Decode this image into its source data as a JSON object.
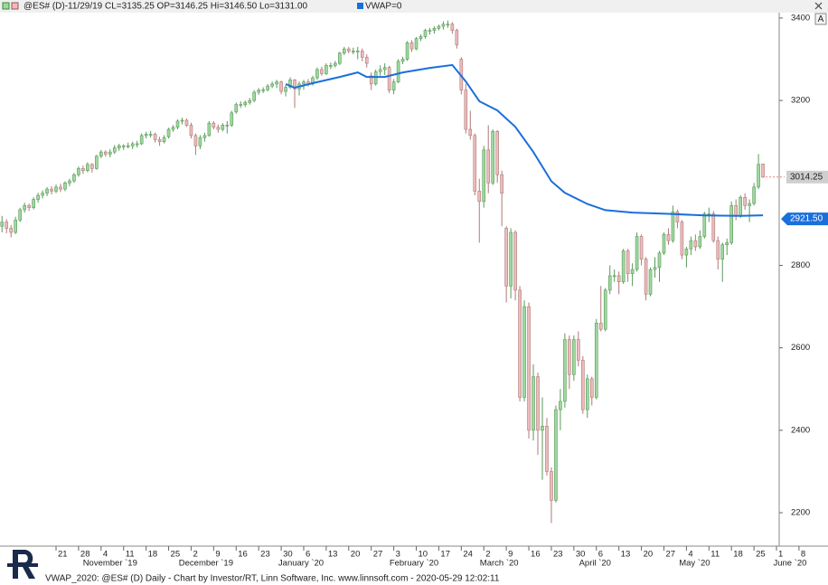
{
  "chart_data": {
    "type": "candlestick",
    "title": "@ES# (D)-11/29/19 CL=3135.25 OP=3146.25 Hi=3146.50 Lo=3131.00",
    "legend_vwap": "VWAP=0",
    "footer": "VWAP_2020: @ES# (D) Daily - Chart by Investor/RT, Linn Software, Inc. www.linnsoft.com - 2020-05-29 12:02:11",
    "button": "A",
    "up_color": "#9fd89f",
    "down_color": "#ecbcbc",
    "xlim": [
      -0.45,
      172.6
    ],
    "ylim": [
      2119,
      3413
    ],
    "yticks": [
      2200,
      2400,
      2600,
      2800,
      3200,
      3400
    ],
    "xticks": [
      {
        "value": 12,
        "label": "21"
      },
      {
        "value": 17,
        "label": "28"
      },
      {
        "value": 22,
        "label": "4"
      },
      {
        "value": 27,
        "label": "11"
      },
      {
        "value": 32,
        "label": "18"
      },
      {
        "value": 37,
        "label": "25"
      },
      {
        "value": 42,
        "label": "2"
      },
      {
        "value": 47,
        "label": "9"
      },
      {
        "value": 52,
        "label": "16"
      },
      {
        "value": 57,
        "label": "23"
      },
      {
        "value": 62,
        "label": "30"
      },
      {
        "value": 67,
        "label": "6"
      },
      {
        "value": 72,
        "label": "13"
      },
      {
        "value": 77,
        "label": "20"
      },
      {
        "value": 82,
        "label": "27"
      },
      {
        "value": 87,
        "label": "3"
      },
      {
        "value": 92,
        "label": "10"
      },
      {
        "value": 97,
        "label": "17"
      },
      {
        "value": 102,
        "label": "24"
      },
      {
        "value": 107,
        "label": "2"
      },
      {
        "value": 112,
        "label": "9"
      },
      {
        "value": 117,
        "label": "16"
      },
      {
        "value": 122,
        "label": "23"
      },
      {
        "value": 127,
        "label": "30"
      },
      {
        "value": 132,
        "label": "6"
      },
      {
        "value": 137,
        "label": "13"
      },
      {
        "value": 142,
        "label": "20"
      },
      {
        "value": 147,
        "label": "27"
      },
      {
        "value": 152,
        "label": "4"
      },
      {
        "value": 157,
        "label": "11"
      },
      {
        "value": 162,
        "label": "18"
      },
      {
        "value": 167,
        "label": "25"
      },
      {
        "value": 172,
        "label": "1"
      },
      {
        "value": 177,
        "label": "8"
      }
    ],
    "month_labels": [
      {
        "value": 24,
        "label": "November `19"
      },
      {
        "value": 45.3,
        "label": "December `19"
      },
      {
        "value": 66.4,
        "label": "January `20"
      },
      {
        "value": 91.5,
        "label": "February `20"
      },
      {
        "value": 110.4,
        "label": "March `20"
      },
      {
        "value": 131.7,
        "label": "April `20"
      },
      {
        "value": 153.8,
        "label": "May `20"
      },
      {
        "value": 175,
        "label": "June `20"
      }
    ],
    "last_price": {
      "value": 3014.25,
      "label": "3014.25"
    },
    "vwap_last": {
      "value": 2921.5,
      "label": "2921.50"
    },
    "candles": [
      [
        2895,
        2920,
        2880,
        2905
      ],
      [
        2905,
        2912,
        2878,
        2890
      ],
      [
        2890,
        2898,
        2868,
        2880
      ],
      [
        2880,
        2918,
        2876,
        2910
      ],
      [
        2910,
        2940,
        2905,
        2935
      ],
      [
        2935,
        2952,
        2928,
        2945
      ],
      [
        2945,
        2950,
        2932,
        2940
      ],
      [
        2940,
        2965,
        2936,
        2960
      ],
      [
        2960,
        2976,
        2952,
        2970
      ],
      [
        2970,
        2982,
        2962,
        2975
      ],
      [
        2975,
        2990,
        2968,
        2985
      ],
      [
        2985,
        2992,
        2972,
        2980
      ],
      [
        2980,
        2996,
        2975,
        2990
      ],
      [
        2990,
        2998,
        2978,
        2985
      ],
      [
        2985,
        3004,
        2980,
        3000
      ],
      [
        3000,
        3010,
        2992,
        3005
      ],
      [
        3005,
        3024,
        3000,
        3020
      ],
      [
        3020,
        3040,
        3015,
        3035
      ],
      [
        3035,
        3042,
        3022,
        3030
      ],
      [
        3030,
        3050,
        3026,
        3045
      ],
      [
        3045,
        3048,
        3025,
        3035
      ],
      [
        3035,
        3068,
        3032,
        3065
      ],
      [
        3065,
        3080,
        3060,
        3075
      ],
      [
        3075,
        3079,
        3064,
        3070
      ],
      [
        3070,
        3082,
        3062,
        3075
      ],
      [
        3075,
        3092,
        3070,
        3085
      ],
      [
        3085,
        3095,
        3078,
        3090
      ],
      [
        3088,
        3094,
        3080,
        3090
      ],
      [
        3090,
        3098,
        3084,
        3090
      ],
      [
        3090,
        3100,
        3082,
        3095
      ],
      [
        3095,
        3102,
        3086,
        3095
      ],
      [
        3095,
        3120,
        3092,
        3115
      ],
      [
        3115,
        3124,
        3108,
        3118
      ],
      [
        3118,
        3126,
        3110,
        3118
      ],
      [
        3118,
        3122,
        3098,
        3105
      ],
      [
        3105,
        3112,
        3090,
        3100
      ],
      [
        3100,
        3116,
        3096,
        3110
      ],
      [
        3112,
        3134,
        3108,
        3130
      ],
      [
        3130,
        3140,
        3124,
        3135
      ],
      [
        3135,
        3154,
        3130,
        3150
      ],
      [
        3150,
        3158,
        3142,
        3152
      ],
      [
        3152,
        3156,
        3136,
        3140
      ],
      [
        3140,
        3146,
        3108,
        3115
      ],
      [
        3115,
        3120,
        3068,
        3090
      ],
      [
        3090,
        3116,
        3082,
        3110
      ],
      [
        3110,
        3122,
        3100,
        3115
      ],
      [
        3115,
        3150,
        3112,
        3145
      ],
      [
        3145,
        3150,
        3130,
        3135
      ],
      [
        3135,
        3142,
        3122,
        3130
      ],
      [
        3130,
        3145,
        3125,
        3140
      ],
      [
        3140,
        3150,
        3120,
        3140
      ],
      [
        3140,
        3175,
        3136,
        3170
      ],
      [
        3172,
        3195,
        3168,
        3190
      ],
      [
        3190,
        3198,
        3182,
        3190
      ],
      [
        3190,
        3200,
        3184,
        3195
      ],
      [
        3195,
        3206,
        3190,
        3200
      ],
      [
        3200,
        3225,
        3196,
        3220
      ],
      [
        3220,
        3230,
        3214,
        3225
      ],
      [
        3225,
        3232,
        3218,
        3226
      ],
      [
        3226,
        3240,
        3222,
        3235
      ],
      [
        3235,
        3246,
        3230,
        3240
      ],
      [
        3240,
        3250,
        3230,
        3245
      ],
      [
        3245,
        3248,
        3215,
        3222
      ],
      [
        3222,
        3238,
        3210,
        3232
      ],
      [
        3232,
        3256,
        3228,
        3250
      ],
      [
        3250,
        3252,
        3182,
        3228
      ],
      [
        3228,
        3246,
        3212,
        3240
      ],
      [
        3240,
        3250,
        3226,
        3245
      ],
      [
        3245,
        3252,
        3234,
        3240
      ],
      [
        3240,
        3260,
        3236,
        3255
      ],
      [
        3255,
        3280,
        3250,
        3275
      ],
      [
        3275,
        3282,
        3260,
        3265
      ],
      [
        3265,
        3290,
        3262,
        3285
      ],
      [
        3285,
        3292,
        3276,
        3285
      ],
      [
        3285,
        3296,
        3280,
        3290
      ],
      [
        3290,
        3318,
        3286,
        3315
      ],
      [
        3315,
        3330,
        3310,
        3325
      ],
      [
        3325,
        3330,
        3314,
        3320
      ],
      [
        3320,
        3328,
        3312,
        3320
      ],
      [
        3320,
        3330,
        3300,
        3320
      ],
      [
        3320,
        3326,
        3295,
        3305
      ],
      [
        3305,
        3312,
        3280,
        3290
      ],
      [
        3260,
        3268,
        3225,
        3240
      ],
      [
        3240,
        3275,
        3236,
        3270
      ],
      [
        3270,
        3285,
        3260,
        3275
      ],
      [
        3275,
        3290,
        3262,
        3280
      ],
      [
        3280,
        3284,
        3218,
        3225
      ],
      [
        3225,
        3252,
        3215,
        3245
      ],
      [
        3245,
        3300,
        3242,
        3295
      ],
      [
        3295,
        3306,
        3288,
        3300
      ],
      [
        3300,
        3344,
        3296,
        3340
      ],
      [
        3340,
        3346,
        3318,
        3325
      ],
      [
        3325,
        3354,
        3322,
        3350
      ],
      [
        3350,
        3360,
        3344,
        3355
      ],
      [
        3355,
        3374,
        3350,
        3370
      ],
      [
        3370,
        3376,
        3360,
        3370
      ],
      [
        3370,
        3380,
        3362,
        3375
      ],
      [
        3375,
        3384,
        3370,
        3380
      ],
      [
        3380,
        3392,
        3372,
        3385
      ],
      [
        3385,
        3394,
        3376,
        3385
      ],
      [
        3385,
        3390,
        3362,
        3370
      ],
      [
        3370,
        3374,
        3326,
        3335
      ],
      [
        3300,
        3305,
        3215,
        3225
      ],
      [
        3225,
        3240,
        3120,
        3130
      ],
      [
        3130,
        3175,
        3105,
        3115
      ],
      [
        3115,
        3120,
        2970,
        2980
      ],
      [
        2980,
        3010,
        2855,
        2955
      ],
      [
        2955,
        3090,
        2940,
        3080
      ],
      [
        3080,
        3140,
        2975,
        3000
      ],
      [
        3000,
        3130,
        2995,
        3125
      ],
      [
        3125,
        3128,
        3000,
        3020
      ],
      [
        3020,
        3030,
        2895,
        2975
      ],
      [
        2890,
        2895,
        2710,
        2750
      ],
      [
        2750,
        2890,
        2720,
        2880
      ],
      [
        2880,
        2885,
        2715,
        2740
      ],
      [
        2740,
        2750,
        2470,
        2480
      ],
      [
        2480,
        2715,
        2470,
        2700
      ],
      [
        2700,
        2710,
        2380,
        2400
      ],
      [
        2400,
        2560,
        2375,
        2530
      ],
      [
        2530,
        2540,
        2340,
        2400
      ],
      [
        2400,
        2480,
        2280,
        2410
      ],
      [
        2410,
        2430,
        2290,
        2300
      ],
      [
        2300,
        2310,
        2175,
        2230
      ],
      [
        2230,
        2460,
        2225,
        2450
      ],
      [
        2450,
        2500,
        2400,
        2470
      ],
      [
        2470,
        2635,
        2455,
        2620
      ],
      [
        2620,
        2630,
        2500,
        2535
      ],
      [
        2535,
        2630,
        2520,
        2620
      ],
      [
        2620,
        2640,
        2555,
        2570
      ],
      [
        2570,
        2580,
        2440,
        2450
      ],
      [
        2450,
        2535,
        2430,
        2525
      ],
      [
        2525,
        2530,
        2460,
        2480
      ],
      [
        2480,
        2670,
        2475,
        2660
      ],
      [
        2660,
        2750,
        2640,
        2645
      ],
      [
        2645,
        2745,
        2640,
        2740
      ],
      [
        2740,
        2800,
        2730,
        2775
      ],
      [
        2775,
        2790,
        2760,
        2775
      ],
      [
        2775,
        2785,
        2730,
        2760
      ],
      [
        2760,
        2840,
        2755,
        2835
      ],
      [
        2835,
        2840,
        2760,
        2780
      ],
      [
        2780,
        2805,
        2750,
        2790
      ],
      [
        2790,
        2880,
        2785,
        2870
      ],
      [
        2870,
        2875,
        2800,
        2815
      ],
      [
        2815,
        2820,
        2715,
        2730
      ],
      [
        2730,
        2795,
        2725,
        2790
      ],
      [
        2790,
        2820,
        2770,
        2795
      ],
      [
        2795,
        2835,
        2760,
        2830
      ],
      [
        2830,
        2880,
        2825,
        2875
      ],
      [
        2875,
        2890,
        2850,
        2860
      ],
      [
        2860,
        2945,
        2855,
        2930
      ],
      [
        2930,
        2935,
        2890,
        2905
      ],
      [
        2905,
        2910,
        2815,
        2825
      ],
      [
        2825,
        2845,
        2795,
        2840
      ],
      [
        2840,
        2870,
        2825,
        2860
      ],
      [
        2860,
        2875,
        2835,
        2845
      ],
      [
        2845,
        2885,
        2840,
        2870
      ],
      [
        2870,
        2930,
        2865,
        2925
      ],
      [
        2925,
        2940,
        2905,
        2925
      ],
      [
        2925,
        2932,
        2855,
        2860
      ],
      [
        2860,
        2870,
        2790,
        2815
      ],
      [
        2815,
        2855,
        2760,
        2850
      ],
      [
        2850,
        2865,
        2825,
        2855
      ],
      [
        2855,
        2955,
        2850,
        2945
      ],
      [
        2945,
        2960,
        2910,
        2920
      ],
      [
        2920,
        2970,
        2915,
        2965
      ],
      [
        2965,
        2975,
        2935,
        2945
      ],
      [
        2945,
        2960,
        2905,
        2950
      ],
      [
        2950,
        3000,
        2945,
        2990
      ],
      [
        2990,
        3070,
        2985,
        3045
      ],
      [
        3046,
        3046,
        3012,
        3014.25
      ]
    ],
    "series": [
      {
        "name": "VWAP",
        "color": "#1a6fdc",
        "x": [
          63,
          65,
          69,
          75,
          79,
          81,
          85,
          89,
          95,
          100,
          103,
          106,
          110,
          114,
          118,
          122,
          125,
          130,
          134,
          140,
          148,
          156,
          164,
          169
        ],
        "values": [
          3240,
          3231,
          3242,
          3257,
          3268,
          3257,
          3257,
          3268,
          3279,
          3286,
          3246,
          3198,
          3176,
          3136,
          3075,
          3004,
          2976,
          2949,
          2934,
          2928,
          2925,
          2921,
          2920,
          2921.5
        ]
      }
    ]
  }
}
